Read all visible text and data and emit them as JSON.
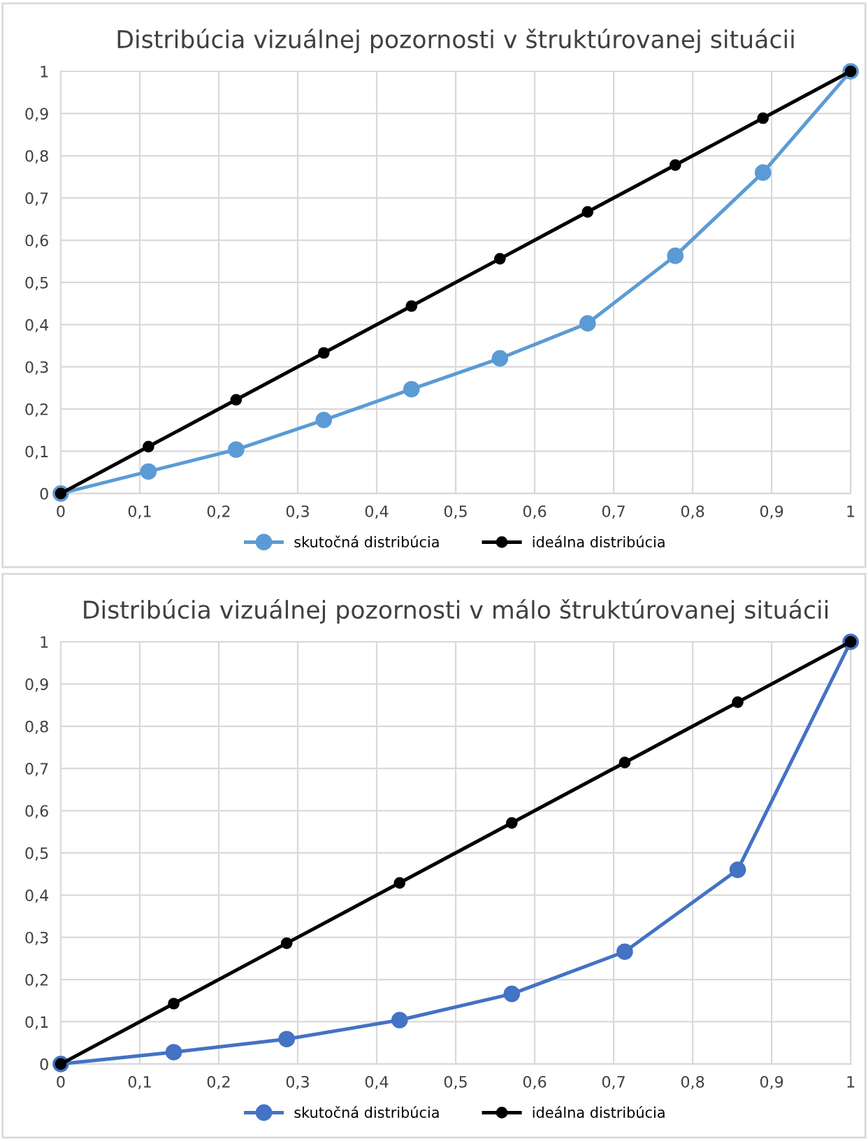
{
  "chart_data": [
    {
      "type": "line",
      "title": "Distribúcia vizuálnej pozornosti v štruktúrovanej situácii",
      "grid": true,
      "legend": "bottom",
      "marker": "circle",
      "line_style": "solid",
      "xlim": [
        0,
        1
      ],
      "ylim": [
        0,
        1
      ],
      "xticks": [
        0,
        {
          "value": 0.1,
          "label": "0,1"
        },
        {
          "value": 0.2,
          "label": "0,2"
        },
        {
          "value": 0.3,
          "label": "0,3"
        },
        {
          "value": 0.4,
          "label": "0,4"
        },
        {
          "value": 0.5,
          "label": "0,5"
        },
        {
          "value": 0.6,
          "label": "0,6"
        },
        {
          "value": 0.7,
          "label": "0,7"
        },
        {
          "value": 0.8,
          "label": "0,8"
        },
        {
          "value": 0.9,
          "label": "0,9"
        },
        1
      ],
      "yticks": [
        0,
        {
          "value": 0.1,
          "label": "0,1"
        },
        {
          "value": 0.2,
          "label": "0,2"
        },
        {
          "value": 0.3,
          "label": "0,3"
        },
        {
          "value": 0.4,
          "label": "0,4"
        },
        {
          "value": 0.5,
          "label": "0,5"
        },
        {
          "value": 0.6,
          "label": "0,6"
        },
        {
          "value": 0.7,
          "label": "0,7"
        },
        {
          "value": 0.8,
          "label": "0,8"
        },
        {
          "value": 0.9,
          "label": "0,9"
        },
        1
      ],
      "x": [
        0,
        0.111,
        0.222,
        0.333,
        0.444,
        0.556,
        0.667,
        0.778,
        0.889,
        1
      ],
      "series": [
        {
          "name": "skutočná distribúcia",
          "color": "#5b9bd5",
          "values": [
            0,
            0.052,
            0.104,
            0.174,
            0.247,
            0.32,
            0.403,
            0.563,
            0.76,
            1
          ]
        },
        {
          "name": "ideálna distribúcia",
          "color": "#000000",
          "values": [
            0,
            0.111,
            0.222,
            0.333,
            0.444,
            0.556,
            0.667,
            0.778,
            0.889,
            1
          ]
        }
      ]
    },
    {
      "type": "line",
      "title": "Distribúcia vizuálnej pozornosti v málo štruktúrovanej situácii",
      "grid": true,
      "legend": "bottom",
      "marker": "circle",
      "line_style": "solid",
      "xlim": [
        0,
        1
      ],
      "ylim": [
        0,
        1
      ],
      "xticks": [
        0,
        {
          "value": 0.1,
          "label": "0,1"
        },
        {
          "value": 0.2,
          "label": "0,2"
        },
        {
          "value": 0.3,
          "label": "0,3"
        },
        {
          "value": 0.4,
          "label": "0,4"
        },
        {
          "value": 0.5,
          "label": "0,5"
        },
        {
          "value": 0.6,
          "label": "0,6"
        },
        {
          "value": 0.7,
          "label": "0,7"
        },
        {
          "value": 0.8,
          "label": "0,8"
        },
        {
          "value": 0.9,
          "label": "0,9"
        },
        1
      ],
      "yticks": [
        0,
        {
          "value": 0.1,
          "label": "0,1"
        },
        {
          "value": 0.2,
          "label": "0,2"
        },
        {
          "value": 0.3,
          "label": "0,3"
        },
        {
          "value": 0.4,
          "label": "0,4"
        },
        {
          "value": 0.5,
          "label": "0,5"
        },
        {
          "value": 0.6,
          "label": "0,6"
        },
        {
          "value": 0.7,
          "label": "0,7"
        },
        {
          "value": 0.8,
          "label": "0,8"
        },
        {
          "value": 0.9,
          "label": "0,9"
        },
        1
      ],
      "x": [
        0,
        0.143,
        0.286,
        0.429,
        0.571,
        0.714,
        0.857,
        1
      ],
      "series": [
        {
          "name": "skutočná distribúcia",
          "color": "#4472c4",
          "values": [
            0,
            0.028,
            0.059,
            0.104,
            0.166,
            0.266,
            0.46,
            1
          ]
        },
        {
          "name": "ideálna distribúcia",
          "color": "#000000",
          "values": [
            0,
            0.143,
            0.286,
            0.429,
            0.571,
            0.714,
            0.857,
            1
          ]
        }
      ]
    }
  ]
}
